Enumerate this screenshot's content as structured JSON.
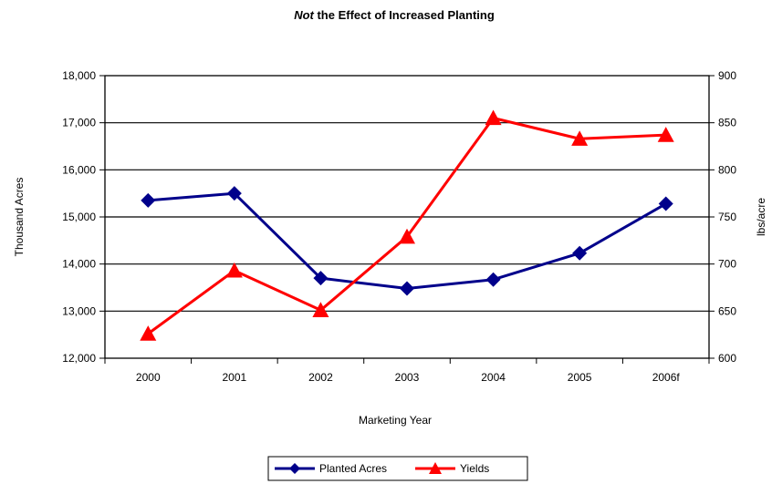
{
  "chart_data": {
    "type": "line",
    "title_prefix": "Not",
    "title_rest": " the Effect of Increased Planting",
    "xlabel": "Marketing Year",
    "ylabel_left": "Thousand Acres",
    "ylabel_right": "lbs/acre",
    "categories": [
      "2000",
      "2001",
      "2002",
      "2003",
      "2004",
      "2005",
      "2006f"
    ],
    "ylim_left": [
      12000,
      18000
    ],
    "ylim_right": [
      600,
      900
    ],
    "yticks_left": [
      "12,000",
      "13,000",
      "14,000",
      "15,000",
      "16,000",
      "17,000",
      "18,000"
    ],
    "yticks_right": [
      "600",
      "650",
      "700",
      "750",
      "800",
      "850",
      "900"
    ],
    "grid": "horizontal",
    "legend_position": "bottom",
    "series": [
      {
        "name": "Planted Acres",
        "axis": "left",
        "color": "#00008b",
        "marker": "diamond",
        "values": [
          15350,
          15500,
          13700,
          13480,
          13670,
          14230,
          15280
        ]
      },
      {
        "name": "Yields",
        "axis": "right",
        "color": "#ff0000",
        "marker": "triangle",
        "values": [
          626,
          693,
          651,
          729,
          855,
          833,
          837
        ]
      }
    ]
  }
}
